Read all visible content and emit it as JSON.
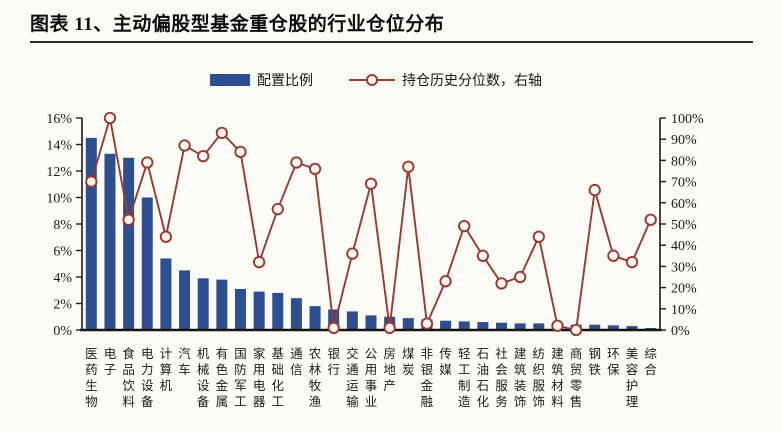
{
  "header": {
    "title": "图表 11、主动偏股型基金重仓股的行业仓位分布"
  },
  "legend": {
    "bar_label": "配置比例",
    "line_label": "持仓历史分位数，右轴"
  },
  "colors": {
    "background": "#fdfbf5",
    "bar": "#2d4f8f",
    "line": "#963a32",
    "marker_fill": "#fdf4ee",
    "axis": "#1a1a1a",
    "text": "#1a1a1a"
  },
  "chart_data": {
    "type": "bar",
    "subtype": "bar+line dual axis",
    "title": "主动偏股型基金重仓股的行业仓位分布",
    "grid": false,
    "legend_position": "top",
    "categories": [
      "医药生物",
      "电子",
      "食品饮料",
      "电力设备",
      "计算机",
      "汽车",
      "机械设备",
      "有色金属",
      "国防军工",
      "家用电器",
      "基础化工",
      "通信",
      "农林牧渔",
      "银行",
      "交通运输",
      "公用事业",
      "房地产",
      "煤炭",
      "非银金融",
      "传媒",
      "轻工制造",
      "石油石化",
      "社会服务",
      "建筑装饰",
      "纺织服饰",
      "建筑材料",
      "商贸零售",
      "钢铁",
      "环保",
      "美容护理",
      "综合"
    ],
    "series": [
      {
        "name": "配置比例",
        "type": "bar",
        "axis": "left",
        "unit": "%",
        "values": [
          14.5,
          13.3,
          13.0,
          10.0,
          5.4,
          4.5,
          3.9,
          3.8,
          3.1,
          2.9,
          2.8,
          2.4,
          1.8,
          1.55,
          1.4,
          1.1,
          1.0,
          0.9,
          0.8,
          0.7,
          0.65,
          0.6,
          0.55,
          0.5,
          0.5,
          0.45,
          0.4,
          0.4,
          0.35,
          0.3,
          0.15
        ]
      },
      {
        "name": "持仓历史分位数，右轴",
        "type": "line",
        "axis": "right",
        "unit": "%",
        "values": [
          70,
          100,
          52,
          79,
          44,
          87,
          82,
          93,
          84,
          32,
          57,
          79,
          76,
          1,
          36,
          69,
          1,
          77,
          3,
          23,
          49,
          35,
          22,
          25,
          44,
          2,
          0,
          66,
          35,
          32,
          52
        ]
      }
    ],
    "left_axis": {
      "min": 0,
      "max": 16,
      "step": 2,
      "tick_labels": [
        "0%",
        "2%",
        "4%",
        "6%",
        "8%",
        "10%",
        "12%",
        "14%",
        "16%"
      ]
    },
    "right_axis": {
      "min": 0,
      "max": 100,
      "step": 10,
      "tick_labels": [
        "0%",
        "10%",
        "20%",
        "30%",
        "40%",
        "50%",
        "60%",
        "70%",
        "80%",
        "90%",
        "100%"
      ]
    }
  }
}
